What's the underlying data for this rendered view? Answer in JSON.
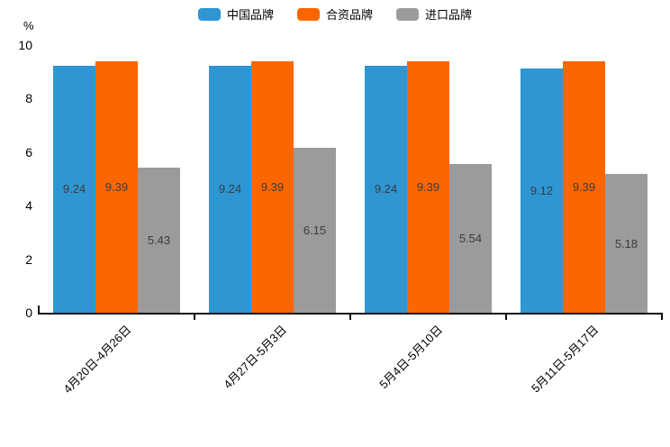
{
  "chart_data": {
    "type": "bar",
    "title": "",
    "categories": [
      "4月20日-4月26日",
      "4月27日-5月3日",
      "5月4日-5月10日",
      "5月11日-5月17日"
    ],
    "series": [
      {
        "name": "中国品牌",
        "color": "#2E96D3",
        "values": [
          9.24,
          9.24,
          9.24,
          9.12
        ]
      },
      {
        "name": "合资品牌",
        "color": "#FC6600",
        "values": [
          9.39,
          9.39,
          9.39,
          9.39
        ]
      },
      {
        "name": "进口品牌",
        "color": "#9B9B9B",
        "values": [
          5.43,
          6.15,
          5.54,
          5.18
        ]
      }
    ],
    "xlabel": "",
    "ylabel": "%",
    "ylim": [
      0,
      10
    ],
    "yticks": [
      0,
      2,
      4,
      6,
      8,
      10
    ],
    "grid": false,
    "legend_position": "top",
    "value_labels": "inside-center",
    "value_label_color": "#3c3c3c",
    "axis_color": "#111111",
    "background_color": "#ffffff"
  }
}
